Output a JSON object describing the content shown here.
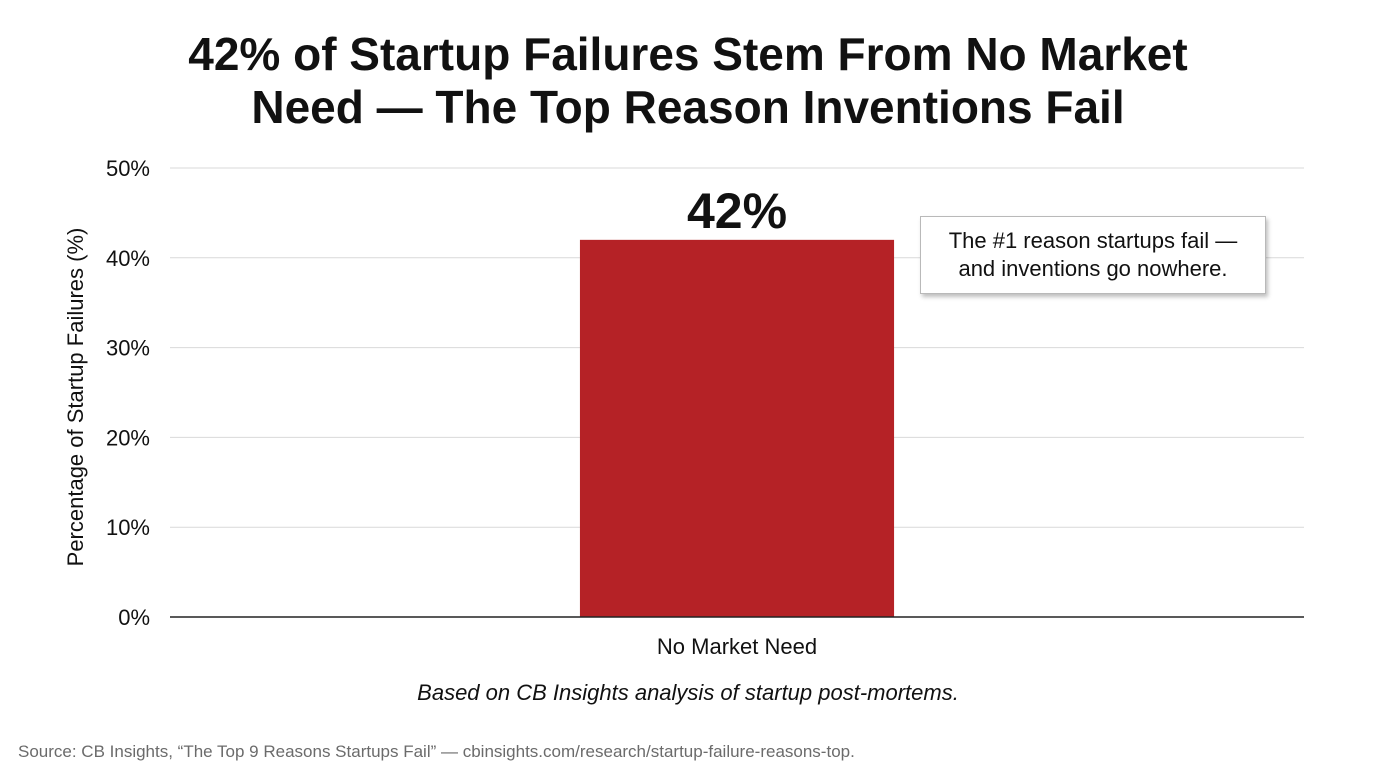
{
  "title": {
    "line1": "42% of Startup Failures Stem From No Market",
    "line2": "Need — The Top Reason Inventions Fail"
  },
  "callout": {
    "line1": "The #1 reason startups fail —",
    "line2": "and inventions go nowhere."
  },
  "note": "Based on CB Insights analysis of startup post-mortems.",
  "source": "Source: CB Insights, “The Top 9 Reasons Startups Fail” — cbinsights.com/research/startup-failure-reasons-top.",
  "colors": {
    "bar": "#b52226",
    "grid": "#d9d9d9",
    "axis": "#222222",
    "text": "#111111"
  },
  "chart_data": {
    "type": "bar",
    "categories": [
      "No Market Need"
    ],
    "values": [
      42
    ],
    "data_labels": [
      "42%"
    ],
    "ylabel": "Percentage of Startup Failures (%)",
    "xlabel": "",
    "ylim": [
      0,
      50
    ],
    "yticks": [
      0,
      10,
      20,
      30,
      40,
      50
    ],
    "ytick_labels": [
      "0%",
      "10%",
      "20%",
      "30%",
      "40%",
      "50%"
    ],
    "grid": true,
    "legend": "none"
  }
}
